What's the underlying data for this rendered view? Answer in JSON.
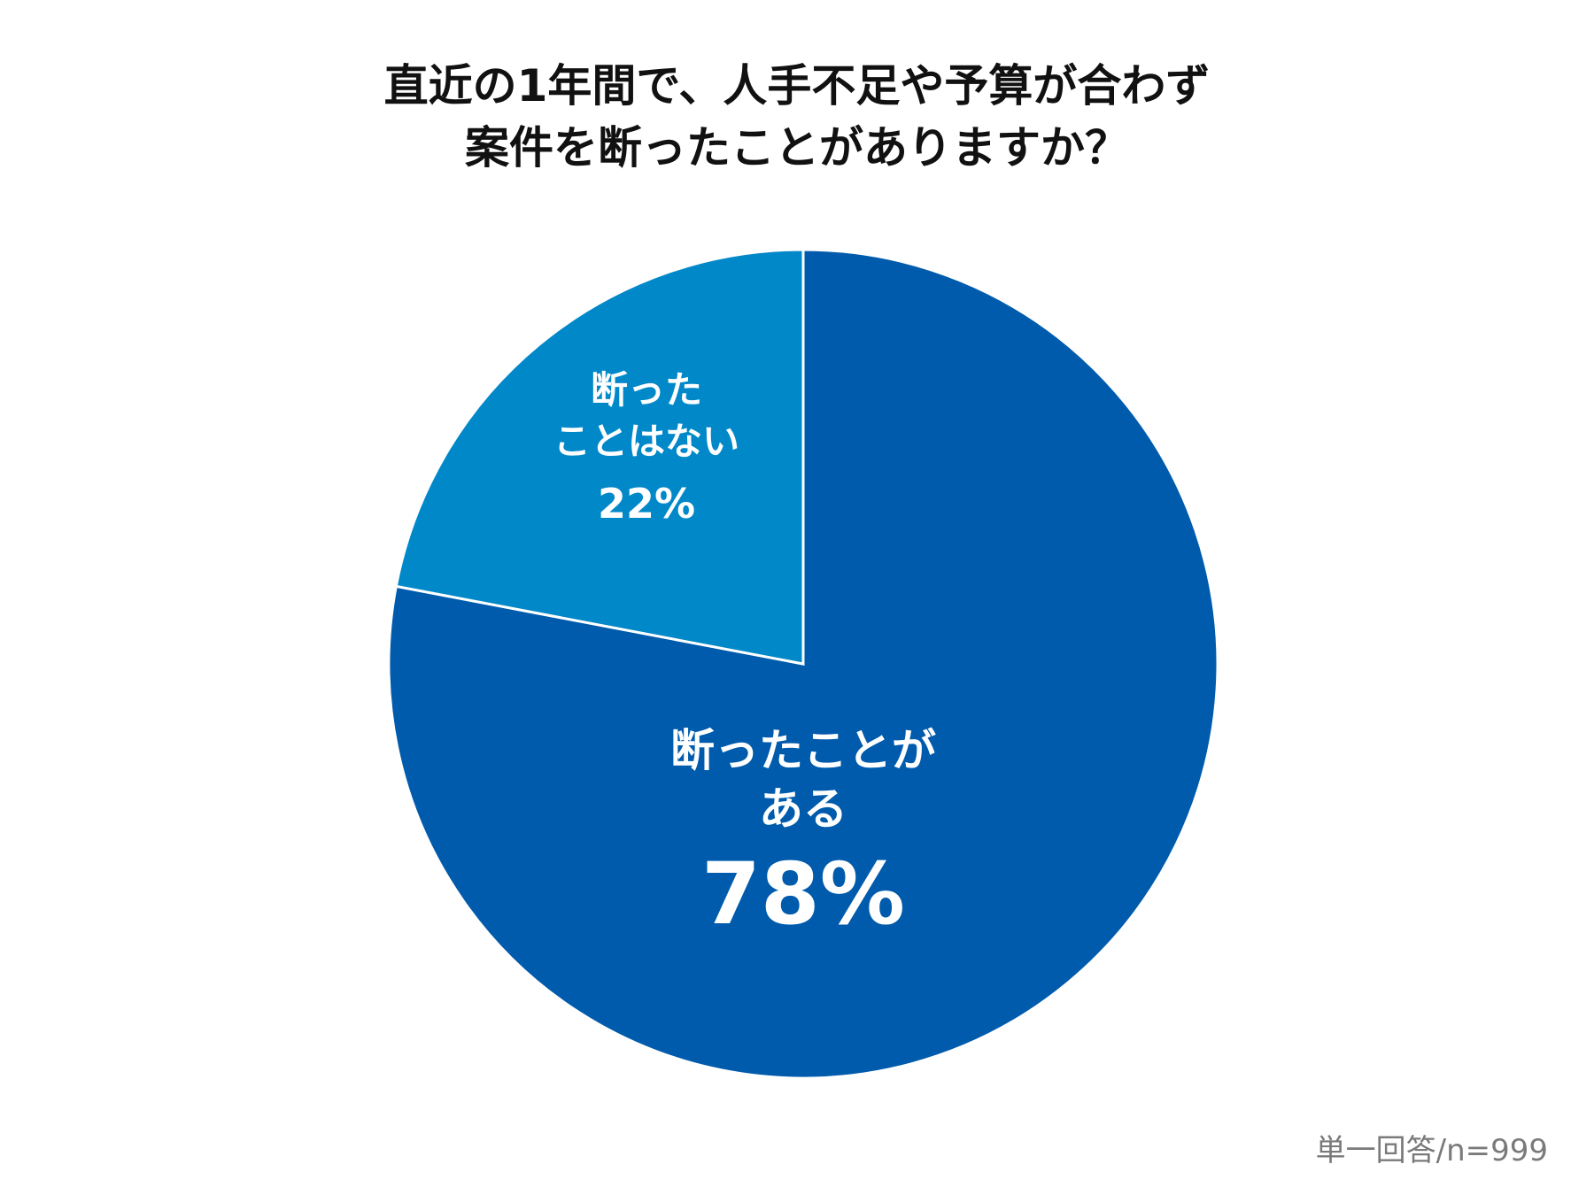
{
  "chart_data": {
    "type": "pie",
    "title_lines": [
      "直近の1年間で、人手不足や予算が合わず",
      "案件を断ったことがありますか？"
    ],
    "slices": [
      {
        "label_lines": [
          "断ったことが",
          "ある"
        ],
        "value": 78,
        "value_label": "78%",
        "color": "#005BAC"
      },
      {
        "label_lines": [
          "断った",
          "ことはない"
        ],
        "value": 22,
        "value_label": "22%",
        "color": "#0088C9"
      }
    ],
    "footnote": "単一回答/n=999"
  }
}
